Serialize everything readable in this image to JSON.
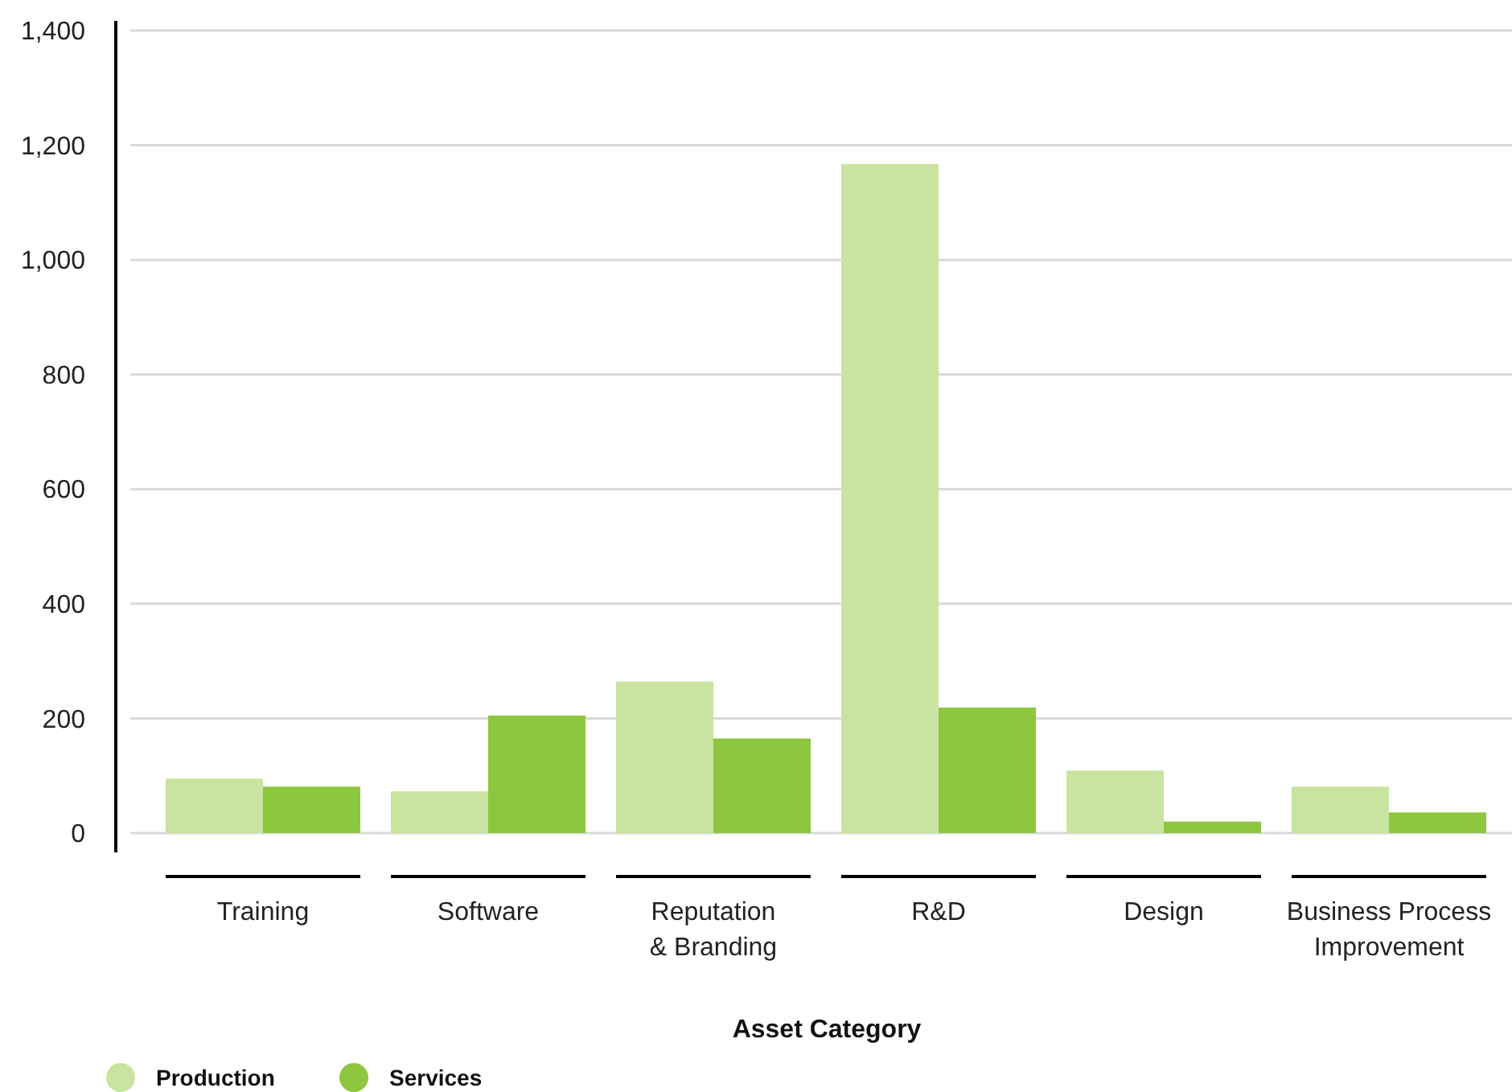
{
  "chart_data": {
    "type": "bar",
    "xlabel": "Asset Category",
    "categories": [
      "Training",
      "Software",
      "Reputation\n& Branding",
      "R&D",
      "Design",
      "Business Process\nImprovement"
    ],
    "series": [
      {
        "name": "Production",
        "color": "#c8e4a0",
        "values": [
          95,
          73,
          264,
          1167,
          109,
          81
        ]
      },
      {
        "name": "Services",
        "color": "#8dc63f",
        "values": [
          81,
          205,
          165,
          219,
          20,
          36
        ]
      }
    ],
    "ylim": [
      0,
      1400
    ],
    "yticks": [
      0,
      200,
      400,
      600,
      800,
      {
        "value": 1000,
        "label": "1,000"
      },
      {
        "value": 1200,
        "label": "1,200"
      },
      {
        "value": 1400,
        "label": "1,400"
      }
    ],
    "grid": "y",
    "legend": "bottom left"
  }
}
